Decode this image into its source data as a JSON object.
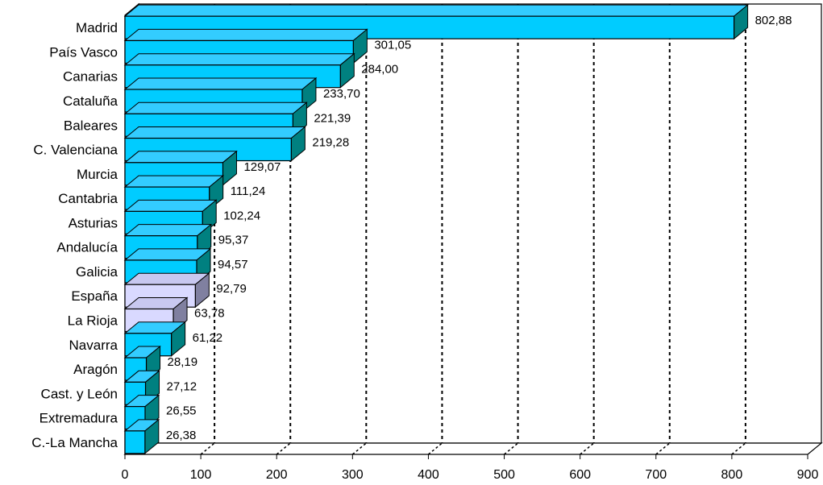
{
  "chart_data": {
    "type": "bar",
    "orientation": "horizontal",
    "style": "3d",
    "title": "",
    "xlabel": "",
    "ylabel": "",
    "xlim": [
      0,
      900
    ],
    "xticks": [
      "0",
      "100",
      "200",
      "300",
      "400",
      "500",
      "600",
      "700",
      "800",
      "900"
    ],
    "grid": "vertical-dotted",
    "legend": "none",
    "categories": [
      "Madrid",
      "País Vasco",
      "Canarias",
      "Cataluña",
      "Baleares",
      "C. Valenciana",
      "Murcia",
      "Cantabria",
      "Asturias",
      "Andalucía",
      "Galicia",
      "España",
      "La Rioja",
      "Navarra",
      "Aragón",
      "Cast. y León",
      "Extremadura",
      "C.-La Mancha"
    ],
    "values": [
      802.88,
      301.05,
      284.0,
      233.7,
      221.39,
      219.28,
      129.07,
      111.24,
      102.24,
      95.37,
      94.57,
      92.79,
      63.78,
      61.22,
      28.19,
      27.12,
      26.55,
      26.38
    ],
    "value_labels": [
      "802,88",
      "301,05",
      "284,00",
      "233,70",
      "221,39",
      "219,28",
      "129,07",
      "111,24",
      "102,24",
      "95,37",
      "94,57",
      "92,79",
      "63,78",
      "61,22",
      "28,19",
      "27,12",
      "26,55",
      "26,38"
    ],
    "highlighted": [
      "España",
      "La Rioja"
    ],
    "colors": {
      "bar_front": "#00CCFF",
      "bar_side": "#008080",
      "bar_top": "#33CCFF",
      "highlight_front": "#D9D9FF",
      "highlight_side": "#8080A0",
      "highlight_top": "#C8C8F0",
      "grid": "#000000",
      "outline": "#000000"
    }
  }
}
